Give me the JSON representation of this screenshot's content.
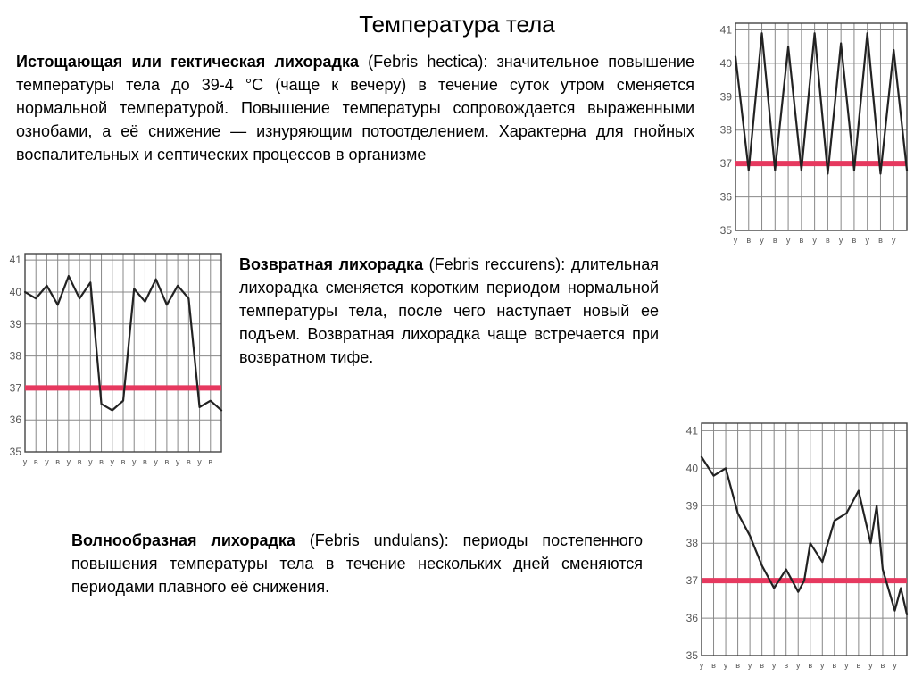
{
  "title": "Температура тела",
  "paragraphs": {
    "p1": {
      "bold": "Истощающая или гектическая лихорадка ",
      "rest": "(Febris hectica): значительное повышение температуры тела до 39-4 °С (чаще к вечеру) в течение суток утром сменяется нормальной температурой. Повышение температуры сопровождается выраженными ознобами, а её снижение — изнуряющим потоотделением. Характерна для гнойных воспалительных и септических процессов в организме"
    },
    "p2": {
      "bold": "Возвратная лихорадка ",
      "rest": "(Febris reccurens): длительная лихорадка сменяется коротким периодом нормальной температуры тела, после чего наступает новый ее подъем. Возвратная лихорадка чаще встречается при возвратном тифе."
    },
    "p3": {
      "bold": "Волнообразная лихорадка ",
      "rest": "(Febris undulans): периоды постепенного повышения температуры тела в течение нескольких дней сменяются периодами плавного её снижения."
    }
  },
  "chart_style": {
    "grid_color": "#888888",
    "grid_width": 1,
    "outer_border_color": "#444444",
    "line_color": "#222222",
    "line_width": 2.2,
    "threshold_color": "#e6395f",
    "threshold_width": 6,
    "label_color": "#555555",
    "label_fontsize": 12,
    "xlabel_fontsize": 9,
    "background": "#ffffff"
  },
  "charts": {
    "hectica": {
      "type": "line",
      "y_min": 35,
      "y_max": 41.2,
      "y_ticks": [
        35,
        36,
        37,
        38,
        39,
        40,
        41
      ],
      "threshold_y": 37,
      "x_labels": [
        "у",
        "в",
        "у",
        "в",
        "у",
        "в",
        "у",
        "в",
        "у",
        "в",
        "у",
        "в",
        "у"
      ],
      "x_count": 14,
      "points": [
        [
          0,
          40.2
        ],
        [
          1,
          36.8
        ],
        [
          2,
          40.9
        ],
        [
          3,
          36.8
        ],
        [
          4,
          40.5
        ],
        [
          5,
          36.8
        ],
        [
          6,
          40.9
        ],
        [
          7,
          36.7
        ],
        [
          8,
          40.6
        ],
        [
          9,
          36.8
        ],
        [
          10,
          40.9
        ],
        [
          11,
          36.7
        ],
        [
          12,
          40.4
        ],
        [
          13,
          36.8
        ]
      ]
    },
    "reccurens": {
      "type": "line",
      "y_min": 35,
      "y_max": 41.2,
      "y_ticks": [
        35,
        36,
        37,
        38,
        39,
        40,
        41
      ],
      "threshold_y": 37,
      "x_labels": [
        "у",
        "в",
        "у",
        "в",
        "у",
        "в",
        "у",
        "в",
        "у",
        "в",
        "у",
        "в",
        "у",
        "в",
        "у",
        "в",
        "у",
        "в"
      ],
      "x_count": 19,
      "points": [
        [
          0,
          40.0
        ],
        [
          1,
          39.8
        ],
        [
          2,
          40.2
        ],
        [
          3,
          39.6
        ],
        [
          4,
          40.5
        ],
        [
          5,
          39.8
        ],
        [
          6,
          40.3
        ],
        [
          7,
          36.5
        ],
        [
          8,
          36.3
        ],
        [
          9,
          36.6
        ],
        [
          10,
          40.1
        ],
        [
          11,
          39.7
        ],
        [
          12,
          40.4
        ],
        [
          13,
          39.6
        ],
        [
          14,
          40.2
        ],
        [
          15,
          39.8
        ],
        [
          16,
          36.4
        ],
        [
          17,
          36.6
        ],
        [
          18,
          36.3
        ]
      ]
    },
    "undulans": {
      "type": "line",
      "y_min": 35,
      "y_max": 41.2,
      "y_ticks": [
        35,
        36,
        37,
        38,
        39,
        40,
        41
      ],
      "threshold_y": 37,
      "x_labels": [
        "у",
        "в",
        "у",
        "в",
        "у",
        "в",
        "у",
        "в",
        "у",
        "в",
        "у",
        "в",
        "у",
        "в",
        "у",
        "в",
        "у"
      ],
      "x_count": 18,
      "points": [
        [
          0,
          40.3
        ],
        [
          1,
          39.8
        ],
        [
          2,
          40.0
        ],
        [
          3,
          38.8
        ],
        [
          4,
          38.2
        ],
        [
          5,
          37.4
        ],
        [
          6,
          36.8
        ],
        [
          7,
          37.3
        ],
        [
          8,
          36.7
        ],
        [
          8.5,
          37.0
        ],
        [
          9,
          38.0
        ],
        [
          10,
          37.5
        ],
        [
          11,
          38.6
        ],
        [
          12,
          38.8
        ],
        [
          13,
          39.4
        ],
        [
          14,
          38.0
        ],
        [
          14.5,
          39.0
        ],
        [
          15,
          37.3
        ],
        [
          16,
          36.2
        ],
        [
          16.5,
          36.8
        ],
        [
          17,
          36.1
        ]
      ]
    }
  }
}
